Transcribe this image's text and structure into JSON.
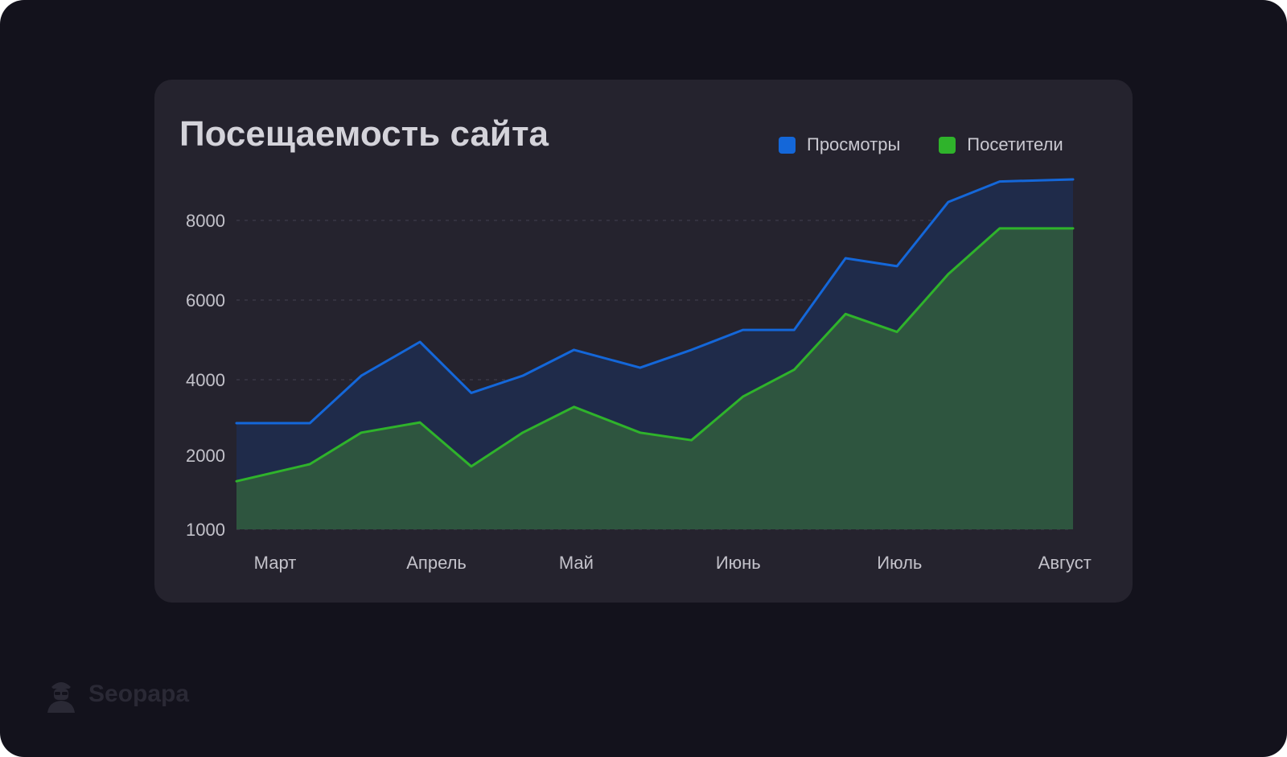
{
  "chart_data": {
    "type": "area",
    "title": "Посещаемость сайта",
    "categories": [
      "Март",
      "Апрель",
      "Май",
      "Июнь",
      "Июль",
      "Август"
    ],
    "yticks": [
      1000,
      2000,
      4000,
      6000,
      8000
    ],
    "grid": true,
    "legend_position": "top-right",
    "series": [
      {
        "name": "Просмотры",
        "color": "#1467d9",
        "fill": "#1f2b4a",
        "x": [
          0.0,
          0.5,
          0.85,
          1.25,
          1.6,
          1.95,
          2.3,
          2.75,
          3.1,
          3.45,
          3.8,
          4.15,
          4.5,
          4.85,
          5.2,
          5.7
        ],
        "values": [
          2850,
          2850,
          4100,
          4950,
          3650,
          4100,
          4750,
          4300,
          4750,
          5250,
          5250,
          7050,
          6850,
          8450,
          8950,
          9000
        ]
      },
      {
        "name": "Посетители",
        "color": "#2fb32b",
        "fill": "#2e553f",
        "x": [
          0.0,
          0.5,
          0.85,
          1.25,
          1.6,
          1.95,
          2.3,
          2.75,
          3.1,
          3.45,
          3.8,
          4.15,
          4.5,
          4.85,
          5.2,
          5.7
        ],
        "values": [
          1650,
          1880,
          2600,
          2870,
          1850,
          2600,
          3280,
          2600,
          2400,
          3550,
          4250,
          5650,
          5200,
          6650,
          7800,
          7800
        ]
      }
    ]
  },
  "watermark": {
    "text": "Seopapa",
    "icon": "agent-icon"
  }
}
